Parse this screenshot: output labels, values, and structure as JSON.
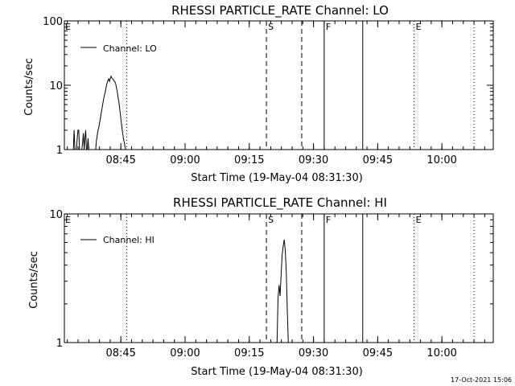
{
  "chart_data": [
    {
      "type": "line",
      "title": "RHESSI PARTICLE_RATE Channel: LO",
      "xlabel": "Start Time (19-May-04 08:31:30)",
      "ylabel": "Counts/sec",
      "y_scale": "log",
      "ylim": [
        1,
        100
      ],
      "y_ticks": [
        {
          "value": 1,
          "label": "1"
        },
        {
          "value": 10,
          "label": "10"
        },
        {
          "value": 100,
          "label": "100"
        }
      ],
      "xlim_minutes": [
        8.53,
        10.2
      ],
      "x_ticks": [
        {
          "value": 8.75,
          "label": "08:45"
        },
        {
          "value": 9.0,
          "label": "09:00"
        },
        {
          "value": 9.25,
          "label": "09:15"
        },
        {
          "value": 9.5,
          "label": "09:30"
        },
        {
          "value": 9.75,
          "label": "09:45"
        },
        {
          "value": 10.0,
          "label": "10:00"
        }
      ],
      "legend": {
        "label": "Channel: LO",
        "position": "top-left"
      },
      "series": [
        {
          "name": "Channel: LO",
          "x": [
            8.565,
            8.568,
            8.571,
            8.574,
            8.577,
            8.58,
            8.583,
            8.586,
            8.589,
            8.592,
            8.595,
            8.598,
            8.601,
            8.604,
            8.607,
            8.61,
            8.613,
            8.616,
            8.619,
            8.622,
            8.625,
            8.628,
            8.631,
            8.634,
            8.637,
            8.64,
            8.643,
            8.646,
            8.649,
            8.652,
            8.655,
            8.658,
            8.661,
            8.664,
            8.667,
            8.67,
            8.673,
            8.676,
            8.679,
            8.682,
            8.685,
            8.688,
            8.691,
            8.694,
            8.697,
            8.7,
            8.703,
            8.706,
            8.709,
            8.712,
            8.715,
            8.718,
            8.721,
            8.724,
            8.727,
            8.73,
            8.733,
            8.736,
            8.739,
            8.742,
            8.745,
            8.748,
            8.751,
            8.754,
            8.757,
            8.76,
            8.763,
            8.766,
            8.769,
            8.772,
            8.775,
            8.778,
            8.781,
            8.784,
            8.787,
            8.79,
            8.793,
            8.796,
            8.799,
            8.802,
            8.805,
            8.808
          ],
          "y": [
            1,
            2,
            1,
            1,
            1,
            1.5,
            2,
            2,
            1,
            1,
            1,
            1,
            1.3,
            1.8,
            1,
            1.5,
            2,
            1,
            1,
            1.5,
            1,
            1,
            1,
            1,
            1,
            1,
            1,
            1,
            1,
            1,
            1.4,
            1.7,
            2,
            2.2,
            2.6,
            3,
            3.6,
            4.2,
            5,
            5.8,
            6.8,
            7.5,
            8.6,
            10,
            11,
            12,
            12.5,
            11.5,
            12.8,
            13.8,
            13,
            12.5,
            12.2,
            11.6,
            11.3,
            10.5,
            9,
            8,
            6.5,
            5.5,
            4.5,
            3.5,
            2.8,
            2.2,
            1.8,
            1.5,
            1.3,
            1.1,
            1,
            1,
            1,
            1,
            1,
            1,
            1,
            1,
            1,
            1,
            1,
            1,
            1,
            1
          ]
        }
      ],
      "markers": [
        {
          "label": "E",
          "x": 8.525,
          "style": "none"
        },
        {
          "label": "",
          "x": 8.7725,
          "style": "dotted"
        },
        {
          "label": "S",
          "x": 9.3167,
          "style": "dashed"
        },
        {
          "label": "",
          "x": 9.4542,
          "style": "dashed"
        },
        {
          "label": "F",
          "x": 9.5417,
          "style": "solid"
        },
        {
          "label": "",
          "x": 9.6917,
          "style": "solid"
        },
        {
          "label": "E",
          "x": 9.8917,
          "style": "dotted"
        },
        {
          "label": "",
          "x": 10.125,
          "style": "dotted"
        }
      ]
    },
    {
      "type": "line",
      "title": "RHESSI PARTICLE_RATE Channel: HI",
      "xlabel": "Start Time (19-May-04 08:31:30)",
      "ylabel": "Counts/sec",
      "y_scale": "log",
      "ylim": [
        1,
        10
      ],
      "y_ticks": [
        {
          "value": 1,
          "label": "1"
        },
        {
          "value": 10,
          "label": "10"
        }
      ],
      "xlim_minutes": [
        8.53,
        10.2
      ],
      "x_ticks": [
        {
          "value": 8.75,
          "label": "08:45"
        },
        {
          "value": 9.0,
          "label": "09:00"
        },
        {
          "value": 9.25,
          "label": "09:15"
        },
        {
          "value": 9.5,
          "label": "09:30"
        },
        {
          "value": 9.75,
          "label": "09:45"
        },
        {
          "value": 10.0,
          "label": "10:00"
        }
      ],
      "legend": {
        "label": "Channel: HI",
        "position": "top-left"
      },
      "series": [
        {
          "name": "Channel: HI",
          "x": [
            9.358,
            9.362,
            9.366,
            9.37,
            9.374,
            9.378,
            9.382,
            9.386,
            9.39,
            9.394,
            9.398,
            9.402
          ],
          "y": [
            1,
            2.2,
            2.8,
            2.3,
            3.4,
            4.8,
            5.6,
            6.3,
            5.2,
            3.5,
            1.8,
            1
          ]
        }
      ],
      "markers": [
        {
          "label": "E",
          "x": 8.525,
          "style": "none"
        },
        {
          "label": "",
          "x": 8.7725,
          "style": "dotted"
        },
        {
          "label": "S",
          "x": 9.3167,
          "style": "dashed"
        },
        {
          "label": "",
          "x": 9.4542,
          "style": "dashed"
        },
        {
          "label": "F",
          "x": 9.5417,
          "style": "solid"
        },
        {
          "label": "",
          "x": 9.6917,
          "style": "solid"
        },
        {
          "label": "E",
          "x": 9.8917,
          "style": "dotted"
        },
        {
          "label": "",
          "x": 10.125,
          "style": "dotted"
        }
      ]
    }
  ],
  "footer": {
    "timestamp": "17-Oct-2021 15:06"
  }
}
